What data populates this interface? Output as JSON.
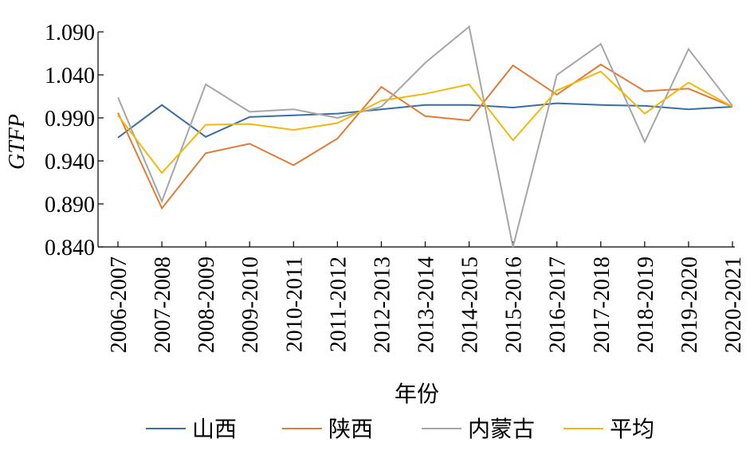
{
  "chart_data": {
    "type": "line",
    "title": "",
    "xlabel": "年份",
    "ylabel": "GTFP",
    "ylim": [
      0.84,
      1.09
    ],
    "yticks": [
      "0.840",
      "0.890",
      "0.940",
      "0.990",
      "1.040",
      "1.090"
    ],
    "categories": [
      "2006-2007",
      "2007-2008",
      "2008-2009",
      "2009-2010",
      "2010-2011",
      "2011-2012",
      "2012-2013",
      "2013-2014",
      "2014-2015",
      "2015-2016",
      "2016-2017",
      "2017-2018",
      "2018-2019",
      "2019-2020",
      "2020-2021"
    ],
    "series": [
      {
        "name": "山西",
        "color": "#3a6ea5",
        "values": [
          0.967,
          1.005,
          0.968,
          0.991,
          0.993,
          0.995,
          1.0,
          1.005,
          1.005,
          1.002,
          1.007,
          1.005,
          1.004,
          1.0,
          1.003
        ]
      },
      {
        "name": "陕西",
        "color": "#e07b39",
        "values": [
          0.996,
          0.885,
          0.949,
          0.96,
          0.935,
          0.966,
          1.026,
          0.992,
          0.987,
          1.051,
          1.017,
          1.052,
          1.021,
          1.024,
          1.003
        ]
      },
      {
        "name": "内蒙古",
        "color": "#a6a6a6",
        "values": [
          1.014,
          0.893,
          1.029,
          0.997,
          1.0,
          0.99,
          1.003,
          1.054,
          1.096,
          0.84,
          1.04,
          1.076,
          0.962,
          1.07,
          1.004
        ]
      },
      {
        "name": "平均",
        "color": "#f2b90a",
        "values": [
          0.993,
          0.926,
          0.982,
          0.983,
          0.976,
          0.984,
          1.01,
          1.018,
          1.029,
          0.964,
          1.022,
          1.044,
          0.995,
          1.031,
          1.003
        ]
      }
    ],
    "legend_position": "bottom"
  }
}
